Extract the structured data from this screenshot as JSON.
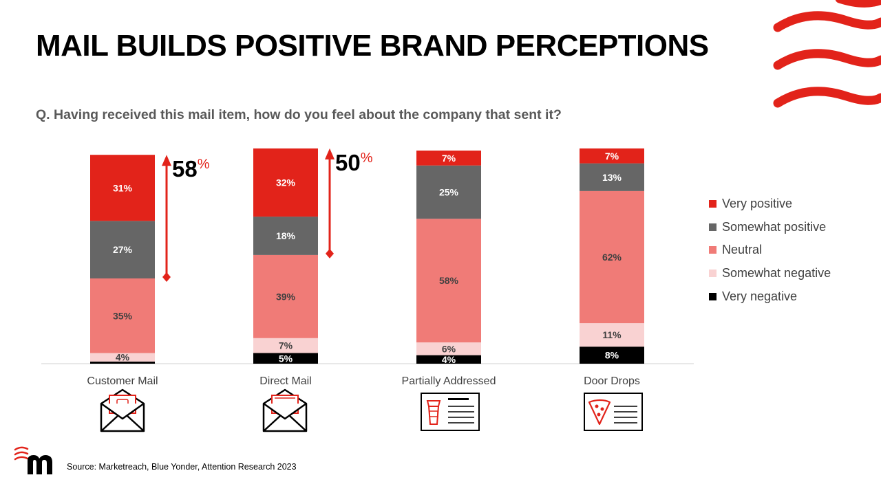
{
  "title": "MAIL BUILDS POSITIVE BRAND PERCEPTIONS",
  "question": "Q. Having received this mail item, how do you feel about the company that sent it?",
  "source": "Source: Marketreach, Blue Yonder, Attention Research 2023",
  "colors": {
    "very_positive": "#e2231a",
    "somewhat_positive": "#666666",
    "neutral": "#f07b77",
    "somewhat_negative": "#f9d2d2",
    "very_negative": "#000000",
    "accent": "#e2231a"
  },
  "chart_data": {
    "type": "bar",
    "stacked": true,
    "categories": [
      "Customer Mail",
      "Direct Mail",
      "Partially Addressed",
      "Door Drops"
    ],
    "series": [
      {
        "name": "Very negative",
        "values": [
          1,
          5,
          4,
          8
        ],
        "labels": [
          "",
          "5%",
          "4%",
          "8%"
        ]
      },
      {
        "name": "Somewhat negative",
        "values": [
          4,
          7,
          6,
          11
        ],
        "labels": [
          "4%",
          "7%",
          "6%",
          "11%"
        ]
      },
      {
        "name": "Neutral",
        "values": [
          35,
          39,
          58,
          62
        ],
        "labels": [
          "35%",
          "39%",
          "58%",
          "62%"
        ]
      },
      {
        "name": "Somewhat positive",
        "values": [
          27,
          18,
          25,
          13
        ],
        "labels": [
          "27%",
          "18%",
          "25%",
          "13%"
        ]
      },
      {
        "name": "Very positive",
        "values": [
          31,
          32,
          7,
          7
        ],
        "labels": [
          "31%",
          "32%",
          "7%",
          "7%"
        ]
      }
    ],
    "legend": [
      "Very positive",
      "Somewhat positive",
      "Neutral",
      "Somewhat negative",
      "Very negative"
    ],
    "legend_position": "right",
    "annotations": [
      {
        "category": "Customer Mail",
        "number": "58",
        "unit": "%"
      },
      {
        "category": "Direct Mail",
        "number": "50",
        "unit": "%"
      }
    ],
    "icons": [
      "envelope-card-icon",
      "envelope-letter-icon",
      "coffee-leaflet-icon",
      "pizza-leaflet-icon"
    ],
    "ylim": [
      0,
      100
    ],
    "grid": false
  }
}
